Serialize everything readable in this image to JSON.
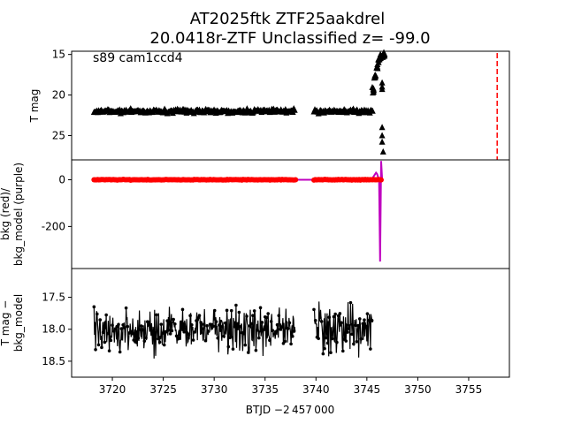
{
  "figure": {
    "title_line1": "AT2025ftk  ZTF25aakdrel",
    "title_line2": "20.0418r-ZTF Unclassified z= -99.0",
    "xlabel": "BTJD −2 457 000"
  },
  "chart_data": [
    {
      "type": "scatter",
      "panel": "top",
      "ylabel": "T mag",
      "annotation": "s89 cam1ccd4",
      "xlim": [
        3716,
        3759
      ],
      "ylim": [
        28,
        14.6
      ],
      "y_inverted": true,
      "yticks": [
        15,
        20,
        25
      ],
      "marker": "triangle-up",
      "series_color": "#000000",
      "segments": [
        {
          "x_start": 3718.2,
          "x_end": 3738.0,
          "y_level": 22.0
        },
        {
          "x_start": 3739.8,
          "x_end": 3745.6,
          "y_level": 22.0
        }
      ],
      "rise": {
        "x": [
          3745.6,
          3745.8,
          3746.0,
          3746.2,
          3746.4,
          3746.6,
          3746.7
        ],
        "y": [
          19.5,
          17.8,
          16.5,
          15.8,
          15.3,
          15.0,
          15.2
        ]
      },
      "faint_points": {
        "x": [
          3746.5,
          3746.5,
          3746.5,
          3746.5,
          3746.5,
          3746.5,
          3746.6
        ],
        "y": [
          18.5,
          19.0,
          19.3,
          24.0,
          25.0,
          25.8,
          27.0
        ]
      },
      "vline": {
        "x": 3757.8,
        "color": "#ff0000",
        "style": "dashed"
      }
    },
    {
      "type": "line",
      "panel": "middle",
      "ylabel": "bkg (red)/\nbkg_model (purple)",
      "xlim": [
        3716,
        3759
      ],
      "ylim": [
        -380,
        85
      ],
      "yticks": [
        0,
        -200
      ],
      "series": [
        {
          "name": "bkg",
          "color": "#ff0000",
          "level": 0,
          "x_ranges": [
            [
              3718.2,
              3738.0
            ],
            [
              3739.8,
              3746.5
            ]
          ]
        },
        {
          "name": "bkg_model",
          "color": "#bf00bf",
          "level": 0,
          "spike_x": [
            3745.6,
            3745.9,
            3746.0,
            3746.2,
            3746.3,
            3746.4,
            3746.5,
            3746.6
          ],
          "spike_y": [
            10,
            30,
            25,
            0,
            -350,
            80,
            0,
            0
          ]
        }
      ]
    },
    {
      "type": "scatter",
      "panel": "bottom",
      "ylabel": "T mag −\nbkg_model",
      "xlim": [
        3716,
        3759
      ],
      "ylim": [
        18.75,
        17.05
      ],
      "y_inverted": true,
      "yticks": [
        17.5,
        18.0,
        18.5
      ],
      "series_color": "#000000",
      "center": 18.0,
      "spread": 0.35,
      "x_ranges": [
        [
          3718.2,
          3738.0
        ],
        [
          3739.8,
          3745.6
        ]
      ]
    }
  ],
  "xaxis": {
    "ticks": [
      3720,
      3725,
      3730,
      3735,
      3740,
      3745,
      3750,
      3755
    ]
  }
}
